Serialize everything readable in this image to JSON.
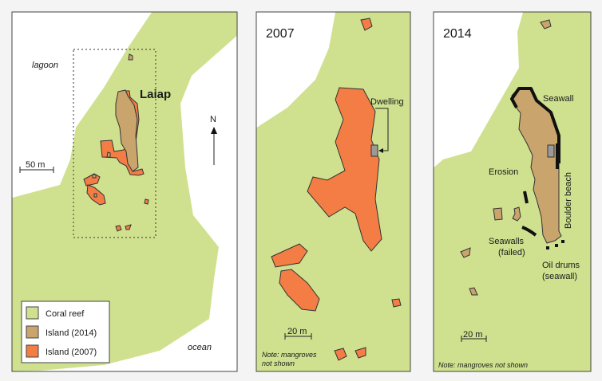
{
  "colors": {
    "coral_reef": "#cfe18f",
    "island_2014": "#c9a46c",
    "island_2007": "#f37d44",
    "dwelling": "#9a9a9a",
    "seawall": "#111111"
  },
  "overview": {
    "lagoon_label": "lagoon",
    "ocean_label": "ocean",
    "island_name": "Laiap",
    "north_label": "N",
    "scale_label": "50 m",
    "legend": [
      {
        "label": "Coral reef",
        "color": "#cfe18f"
      },
      {
        "label": "Island (2014)",
        "color": "#c9a46c"
      },
      {
        "label": "Island (2007)",
        "color": "#f37d44"
      }
    ]
  },
  "panel_2007": {
    "year": "2007",
    "dwelling_label": "Dwelling",
    "scale_label": "20 m",
    "note_line1": "Note: mangroves",
    "note_line2": "not shown"
  },
  "panel_2014": {
    "year": "2014",
    "seawall_label": "Seawall",
    "erosion_label": "Erosion",
    "boulder_label": "Boulder beach",
    "failed_line1": "Seawalls",
    "failed_line2": "(failed)",
    "drums_line1": "Oil drums",
    "drums_line2": "(seawall)",
    "scale_label": "20 m",
    "note": "Note: mangroves not shown"
  }
}
